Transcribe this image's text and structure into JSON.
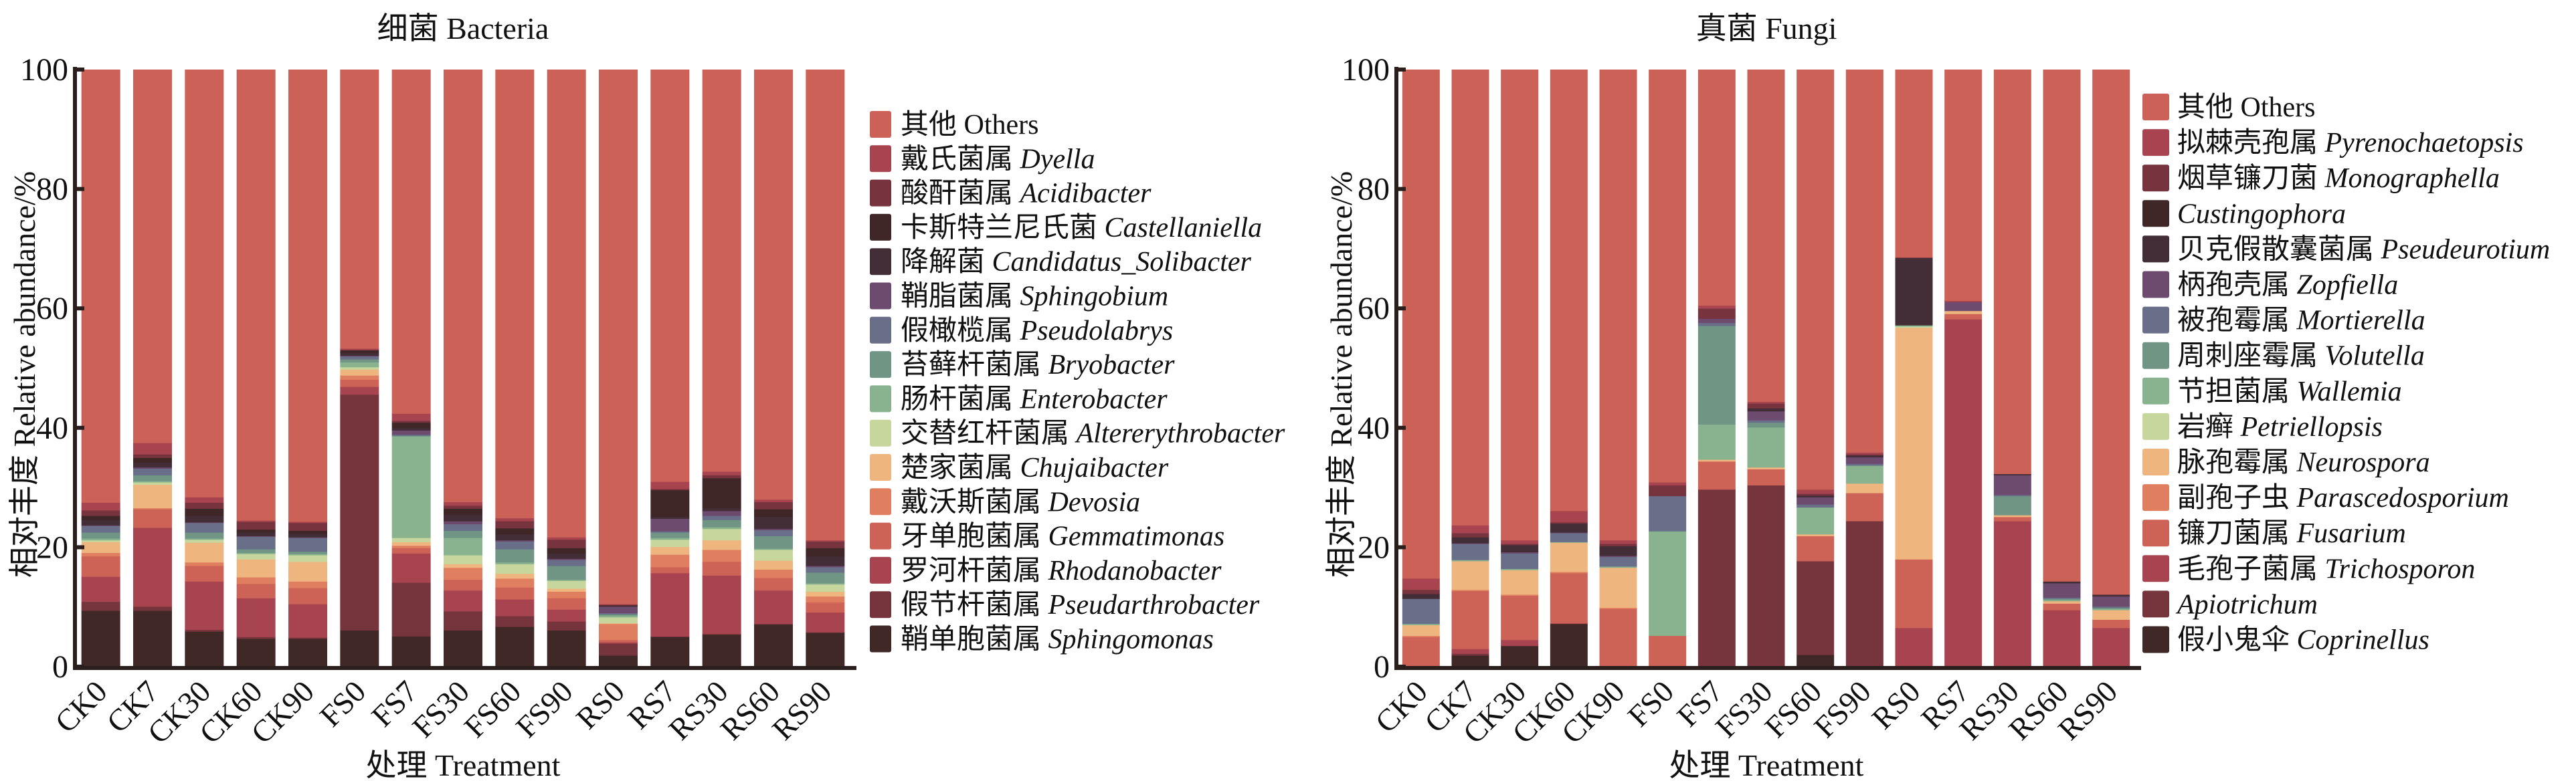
{
  "chart_data": [
    {
      "type": "bar",
      "stacked": true,
      "title": "细菌 Bacteria",
      "xlabel": "处理 Treatment",
      "ylabel": "相对丰度 Relative abundance/%",
      "ylim": [
        0,
        100
      ],
      "yticks": [
        "0",
        "20",
        "40",
        "60",
        "80",
        "100"
      ],
      "legend_position": "right",
      "categories": [
        "CK0",
        "CK7",
        "CK30",
        "CK60",
        "CK90",
        "FS0",
        "FS7",
        "FS30",
        "FS60",
        "FS90",
        "RS0",
        "RS7",
        "RS30",
        "RS60",
        "RS90"
      ],
      "series": [
        {
          "cn": "其他",
          "name": "Others",
          "italic": false,
          "color": "#cb6157",
          "values": [
            72.5,
            62.5,
            71.6,
            75.5,
            75.7,
            46.7,
            57.6,
            72.4,
            75.1,
            78.3,
            89.5,
            69.0,
            67.3,
            72.0,
            78.8
          ]
        },
        {
          "cn": "戴氏菌属",
          "name": "Dyella",
          "italic": true,
          "color": "#a7444f",
          "values": [
            1.3,
            1.9,
            0.9,
            0.2,
            0.2,
            0.2,
            1.2,
            0.6,
            0.5,
            0.4,
            0.1,
            1.2,
            0.6,
            0.4,
            0.2
          ]
        },
        {
          "cn": "酸酐菌属",
          "name": "Acidibacter",
          "italic": true,
          "color": "#77343e",
          "values": [
            0.9,
            0.6,
            1.0,
            1.3,
            1.3,
            0.1,
            0.3,
            0.5,
            1.2,
            1.4,
            0.1,
            0.2,
            0.5,
            1.2,
            1.1
          ]
        },
        {
          "cn": "卡斯特兰尼氏菌",
          "name": "Castellaniella",
          "italic": true,
          "color": "#3f2727",
          "values": [
            0.7,
            0.8,
            1.2,
            0.5,
            0.5,
            0.4,
            0.9,
            1.0,
            1.0,
            0.9,
            0.1,
            4.5,
            5.0,
            1.3,
            1.4
          ]
        },
        {
          "cn": "降解菌",
          "name": "Candidatus_Solibacter",
          "italic": true,
          "color": "#432d37",
          "values": [
            0.9,
            0.8,
            1.1,
            0.6,
            0.6,
            0.5,
            0.4,
            1.1,
            1.0,
            0.9,
            0.1,
            0.3,
            0.5,
            2.0,
            1.6
          ]
        },
        {
          "cn": "鞘脂菌属",
          "name": "Sphingobium",
          "italic": true,
          "color": "#6d4b6f",
          "values": [
            0.1,
            0.2,
            0.1,
            0.1,
            0.1,
            0.1,
            0.7,
            0.5,
            0.2,
            0.2,
            1.1,
            2.1,
            0.8,
            0.2,
            0.2
          ]
        },
        {
          "cn": "假橄榄属",
          "name": "Pseudolabrys",
          "italic": true,
          "color": "#6a6f89",
          "values": [
            1.1,
            1.1,
            1.6,
            2.1,
            2.3,
            0.5,
            0.2,
            1.1,
            1.3,
            1.0,
            0.2,
            0.2,
            0.7,
            1.0,
            0.9
          ]
        },
        {
          "cn": "苔藓杆菌属",
          "name": "Bryobacter",
          "italic": true,
          "color": "#709585",
          "values": [
            1.0,
            1.0,
            1.0,
            0.6,
            0.4,
            0.5,
            0.1,
            1.2,
            2.2,
            2.3,
            0.2,
            0.9,
            1.2,
            2.1,
            1.8
          ]
        },
        {
          "cn": "肠杆菌属",
          "name": "Enterobacter",
          "italic": true,
          "color": "#89b38f",
          "values": [
            0.3,
            0.2,
            0.2,
            0.2,
            0.2,
            0.8,
            17.0,
            2.9,
            0.3,
            0.2,
            0.3,
            0.3,
            0.3,
            0.2,
            0.2
          ]
        },
        {
          "cn": "交替红杆菌属",
          "name": "Altererythrobacter",
          "italic": true,
          "color": "#c6d69c",
          "values": [
            0.3,
            0.4,
            0.5,
            0.9,
            1.1,
            0.4,
            0.7,
            1.5,
            1.6,
            1.3,
            1.0,
            1.2,
            1.9,
            1.8,
            1.2
          ]
        },
        {
          "cn": "楚家菌属",
          "name": "Chujaibacter",
          "italic": true,
          "color": "#efb57f",
          "values": [
            1.8,
            3.9,
            3.3,
            3.0,
            3.3,
            1.0,
            0.6,
            0.6,
            0.8,
            0.5,
            0.1,
            1.3,
            1.6,
            1.5,
            0.8
          ]
        },
        {
          "cn": "戴沃斯菌属",
          "name": "Devosia",
          "italic": true,
          "color": "#e07f5f",
          "values": [
            0.6,
            0.2,
            0.6,
            1.1,
            1.1,
            0.7,
            0.4,
            2.0,
            1.5,
            1.1,
            2.7,
            2.1,
            2.0,
            1.4,
            1.0
          ]
        },
        {
          "cn": "牙单胞菌属",
          "name": "Gemmatimonas",
          "italic": true,
          "color": "#cd6256",
          "values": [
            3.4,
            3.1,
            2.6,
            2.4,
            2.7,
            1.2,
            0.9,
            1.8,
            2.0,
            1.9,
            0.4,
            1.0,
            2.3,
            2.1,
            1.7
          ]
        },
        {
          "cn": "罗河杆菌属",
          "name": "Rhodanobacter",
          "italic": true,
          "color": "#a7444f",
          "values": [
            4.2,
            13.2,
            8.1,
            6.5,
            5.6,
            1.3,
            4.9,
            3.5,
            2.8,
            2.0,
            0.2,
            10.6,
            9.8,
            5.6,
            3.3
          ]
        },
        {
          "cn": "假节杆菌属",
          "name": "Pseudarthrobacter",
          "italic": true,
          "color": "#76343d",
          "values": [
            1.5,
            0.7,
            0.3,
            0.3,
            0.2,
            39.5,
            9.0,
            3.2,
            1.8,
            1.5,
            2.0,
            0.1,
            0.1,
            0.1,
            0.1
          ]
        },
        {
          "cn": "鞘单胞菌属",
          "name": "Sphingomonas",
          "italic": true,
          "color": "#3f2826",
          "values": [
            9.4,
            9.4,
            5.9,
            4.7,
            4.7,
            6.1,
            5.1,
            6.1,
            6.7,
            6.1,
            1.9,
            5.0,
            5.4,
            7.1,
            5.7
          ]
        }
      ]
    },
    {
      "type": "bar",
      "stacked": true,
      "title": "真菌 Fungi",
      "xlabel": "处理 Treatment",
      "ylabel": "相对丰度 Relative abundance/%",
      "ylim": [
        0,
        100
      ],
      "yticks": [
        "0",
        "20",
        "40",
        "60",
        "80",
        "100"
      ],
      "legend_position": "right",
      "categories": [
        "CK0",
        "CK7",
        "CK30",
        "CK60",
        "CK90",
        "FS0",
        "FS7",
        "FS30",
        "FS60",
        "FS90",
        "RS0",
        "RS7",
        "RS30",
        "RS60",
        "RS90"
      ],
      "series": [
        {
          "cn": "其他",
          "name": "Others",
          "italic": false,
          "color": "#cb6157",
          "values": [
            85.2,
            76.3,
            78.8,
            73.9,
            78.8,
            69.1,
            39.5,
            55.6,
            70.3,
            64.1,
            31.4,
            38.7,
            67.7,
            85.7,
            87.9
          ]
        },
        {
          "cn": "拟棘壳孢属",
          "name": "Pyrenochaetopsis",
          "italic": true,
          "color": "#a7444f",
          "values": [
            1.9,
            1.3,
            0.6,
            1.9,
            0.6,
            0.5,
            0.5,
            0.3,
            0.7,
            0.3,
            0.1,
            0.2,
            0,
            0,
            0
          ]
        },
        {
          "cn": "烟草镰刀菌",
          "name": "Monographella",
          "italic": true,
          "color": "#77343e",
          "values": [
            0.7,
            0.7,
            0.2,
            0.2,
            0.4,
            1.8,
            1.7,
            0.8,
            0.3,
            0.2,
            0,
            0,
            0,
            0,
            0
          ]
        },
        {
          "cn": "",
          "name": "Custingophora",
          "italic": true,
          "color": "#3f2727",
          "values": [
            0,
            0,
            0,
            0,
            0,
            0,
            0,
            0,
            0,
            0,
            0,
            0,
            0,
            0,
            0
          ]
        },
        {
          "cn": "贝克假散囊菌属",
          "name": "Pseudeurotium",
          "italic": true,
          "color": "#432d37",
          "values": [
            0.8,
            1.0,
            1.2,
            1.5,
            1.6,
            0,
            0,
            0.5,
            0.3,
            0.3,
            11.3,
            0,
            0.2,
            0.3,
            0.3
          ]
        },
        {
          "cn": "柄孢壳属",
          "name": "Zopfiella",
          "italic": true,
          "color": "#6d4b6f",
          "values": [
            0,
            0.1,
            0.2,
            0.1,
            0.2,
            0,
            0.7,
            1.5,
            1.2,
            1.1,
            0,
            1.5,
            3.3,
            2.4,
            1.7
          ]
        },
        {
          "cn": "被孢霉属",
          "name": "Mortierella",
          "italic": true,
          "color": "#6a6f89",
          "values": [
            4.2,
            2.7,
            2.6,
            1.5,
            1.6,
            5.9,
            0.5,
            0.4,
            0.5,
            0.3,
            0,
            0,
            0.2,
            0.2,
            0.2
          ]
        },
        {
          "cn": "周刺座霉属",
          "name": "Volutella",
          "italic": true,
          "color": "#709585",
          "values": [
            0,
            0,
            0,
            0,
            0,
            0,
            16.5,
            0.8,
            0,
            0,
            0,
            0,
            3.2,
            0.2,
            0.2
          ]
        },
        {
          "cn": "节担菌属",
          "name": "Wallemia",
          "italic": true,
          "color": "#89b38f",
          "values": [
            0.2,
            0.2,
            0.2,
            0.1,
            0.2,
            17.5,
            5.9,
            6.7,
            4.5,
            3.0,
            0.2,
            0,
            0,
            0.2,
            0.2
          ]
        },
        {
          "cn": "岩癣",
          "name": "Petriellopsis",
          "italic": true,
          "color": "#c6d69c",
          "values": [
            0,
            0,
            0,
            0,
            0,
            0,
            0,
            0,
            0,
            0,
            0.2,
            0,
            0,
            0,
            0
          ]
        },
        {
          "cn": "脉孢霉属",
          "name": "Neurospora",
          "italic": true,
          "color": "#efb57f",
          "values": [
            1.8,
            4.8,
            4.1,
            4.9,
            6.7,
            0,
            0.3,
            0.3,
            0.3,
            1.6,
            38.8,
            0.5,
            0.3,
            0.4,
            1.6
          ]
        },
        {
          "cn": "副孢子虫",
          "name": "Parascedosporium",
          "italic": true,
          "color": "#e07f5f",
          "values": [
            0.2,
            0.2,
            0.2,
            0.2,
            0.2,
            0,
            0,
            0,
            0,
            0,
            0,
            0,
            0,
            0,
            0
          ]
        },
        {
          "cn": "镰刀菌属",
          "name": "Fusarium",
          "italic": true,
          "color": "#cd6256",
          "values": [
            5.0,
            9.7,
            7.4,
            8.4,
            9.7,
            5.2,
            4.7,
            2.7,
            4.2,
            4.7,
            11.5,
            0.9,
            0.7,
            1.1,
            1.4
          ]
        },
        {
          "cn": "毛孢子菌属",
          "name": "Trichosporon",
          "italic": true,
          "color": "#a7444f",
          "values": [
            0,
            0.8,
            1.0,
            0.1,
            0,
            0,
            0,
            0,
            0,
            0,
            6.5,
            58.2,
            24.4,
            9.5,
            6.5
          ]
        },
        {
          "cn": "",
          "name": "Apiotrichum",
          "italic": true,
          "color": "#76343d",
          "values": [
            0,
            0.3,
            0,
            0,
            0,
            0,
            29.7,
            30.4,
            15.7,
            24.4,
            0,
            0,
            0,
            0,
            0
          ]
        },
        {
          "cn": "假小鬼伞",
          "name": "Coprinellus",
          "italic": true,
          "color": "#3f2826",
          "values": [
            0,
            1.9,
            3.5,
            7.2,
            0,
            0,
            0,
            0,
            2.0,
            0,
            0,
            0,
            0,
            0,
            0
          ]
        }
      ]
    }
  ]
}
